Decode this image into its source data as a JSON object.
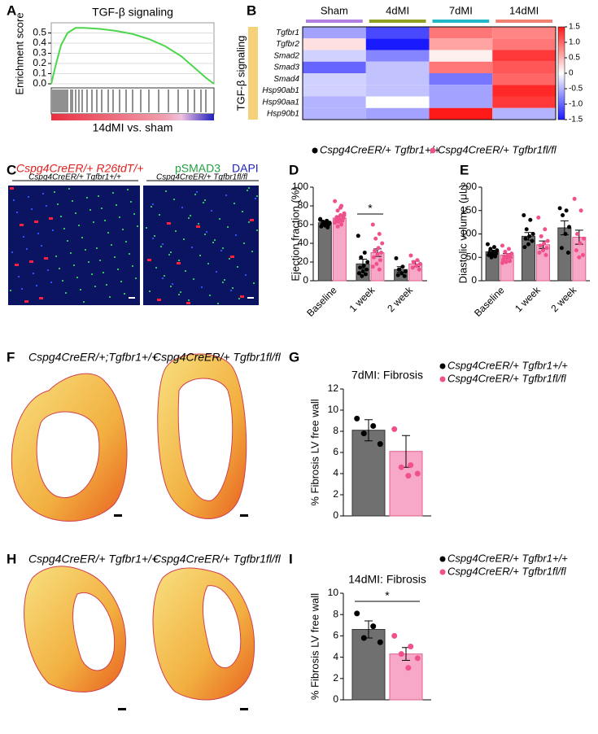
{
  "panels": {
    "letters": [
      "A",
      "B",
      "C",
      "D",
      "E",
      "F",
      "G",
      "H",
      "I"
    ],
    "C": {
      "header": [
        "Cspg4CreER/+ R26tdT/+",
        "pSMAD3",
        "DAPI"
      ],
      "labels": [
        "Cspg4CreER/+ Tgfbr1+/+",
        "Cspg4CreER/+ Tgfbr1fl/fl"
      ]
    },
    "F": {
      "labels": [
        "Cspg4CreER/+;Tgfbr1+/+",
        "Cspg4CreER/+ Tgfbr1fl/fl"
      ]
    },
    "H": {
      "labels": [
        "Cspg4CreER/+ Tgfbr1+/+",
        "Cspg4CreER/+ Tgfbr1fl/fl"
      ]
    }
  },
  "chart_data": [
    {
      "type": "line",
      "title": "TGF-β signaling",
      "ylabel": "Enrichment score",
      "xlabel": "14dMI vs. sham",
      "color": "#4cd64c",
      "x": [
        0,
        3,
        6,
        10,
        15,
        20,
        30,
        40,
        50,
        60,
        70,
        80,
        90,
        95,
        100
      ],
      "values": [
        0,
        0.2,
        0.38,
        0.5,
        0.55,
        0.55,
        0.54,
        0.52,
        0.49,
        0.44,
        0.37,
        0.27,
        0.13,
        0.06,
        0
      ],
      "hits": [
        1,
        2,
        3,
        4,
        5,
        6,
        7,
        8,
        9,
        10,
        12,
        13,
        15,
        17,
        19,
        22,
        25,
        28,
        31,
        35,
        38,
        42,
        46,
        50,
        55,
        60,
        66,
        72,
        78,
        84,
        88,
        92,
        95
      ],
      "xlim": [
        0,
        100
      ],
      "ylim": [
        0,
        0.6
      ],
      "yticks": [
        {
          "value": 0,
          "label": "0.0"
        },
        0.1,
        0.2,
        0.3,
        0.4,
        0.5
      ],
      "grid": true
    },
    {
      "type": "heatmap",
      "ylabel": "TGF-β signaling",
      "columns": [
        "Sham",
        "4dMI",
        "7dMI",
        "14dMI"
      ],
      "column_colors": [
        "#b07fe0",
        "#8fa020",
        "#22b8c8",
        "#f08070"
      ],
      "rows": [
        "Tgfbr1",
        "Tgfbr2",
        "Smad2",
        "Smad3",
        "Smad4",
        "Hsp90ab1",
        "Hsp90aa1",
        "Hsp90b1"
      ],
      "values": [
        [
          -0.6,
          -1.2,
          0.9,
          0.8
        ],
        [
          0.2,
          -1.5,
          0.6,
          0.9
        ],
        [
          -0.3,
          -0.8,
          0.1,
          1.3
        ],
        [
          -1.0,
          -0.4,
          0.9,
          1.1
        ],
        [
          -0.3,
          -0.4,
          -0.9,
          1.0
        ],
        [
          -0.3,
          -0.4,
          -0.6,
          1.4
        ],
        [
          -0.5,
          0,
          -0.6,
          1.3
        ],
        [
          -0.5,
          -0.6,
          1.5,
          -0.5
        ]
      ],
      "clim": [
        -1.5,
        1.5
      ],
      "cticks": [
        1.5,
        {
          "value": 1,
          "label": "1.0"
        },
        0.5,
        0,
        -0.5,
        {
          "value": -1,
          "label": "-1.0"
        },
        -1.5
      ]
    },
    {
      "type": "bar",
      "ylabel": "Ejection fraction (%)",
      "categories": [
        "Baseline",
        "1 week",
        "2 week"
      ],
      "annotation": "*",
      "ylim": [
        0,
        100
      ],
      "yticks": [
        0,
        20,
        40,
        60,
        80,
        100
      ],
      "series": [
        {
          "name": "Cspg4CreER/+ Tgfbr1+/+",
          "color": "#707070",
          "values": [
            62,
            18,
            12
          ],
          "errors": [
            2,
            5,
            3
          ],
          "points": [
            [
              66,
              64,
              63,
              62,
              61,
              60,
              60,
              59,
              58,
              57,
              62,
              65
            ],
            [
              48,
              30,
              25,
              20,
              16,
              14,
              12,
              10,
              8,
              7,
              5
            ],
            [
              24,
              15,
              12,
              10,
              8,
              6,
              5
            ]
          ]
        },
        {
          "name": "Cspg4CreER/+ Tgfbr1fl/fl",
          "color": "#f7a8c8",
          "values": [
            67,
            30,
            18
          ],
          "errors": [
            2,
            4,
            3
          ],
          "points": [
            [
              85,
              80,
              75,
              72,
              70,
              68,
              67,
              66,
              65,
              64,
              63,
              62,
              60,
              58,
              70,
              78
            ],
            [
              60,
              50,
              45,
              40,
              35,
              32,
              30,
              28,
              25,
              22,
              18,
              15,
              12
            ],
            [
              27,
              22,
              20,
              18,
              16,
              14,
              12
            ]
          ]
        }
      ]
    },
    {
      "type": "bar",
      "ylabel": "Diastolic volume (μL)",
      "categories": [
        "Baseline",
        "1 week",
        "2 week"
      ],
      "ylim": [
        0,
        200
      ],
      "yticks": [
        0,
        50,
        100,
        150,
        200
      ],
      "series": [
        {
          "color": "#707070",
          "values": [
            62,
            95,
            113
          ],
          "errors": [
            3,
            8,
            15
          ],
          "points": [
            [
              78,
              72,
              68,
              65,
              62,
              60,
              58,
              56,
              55,
              52,
              50
            ],
            [
              140,
              130,
              110,
              100,
              95,
              90,
              85,
              78,
              72
            ],
            [
              155,
              150,
              140,
              115,
              100,
              70,
              60
            ]
          ]
        },
        {
          "color": "#f7a8c8",
          "values": [
            55,
            77,
            93
          ],
          "errors": [
            3,
            8,
            15
          ],
          "points": [
            [
              75,
              68,
              62,
              58,
              55,
              52,
              50,
              48,
              45,
              42,
              40,
              38
            ],
            [
              135,
              110,
              95,
              85,
              80,
              75,
              70,
              65,
              60,
              55
            ],
            [
              175,
              150,
              100,
              90,
              80,
              65,
              55,
              50
            ]
          ]
        }
      ]
    },
    {
      "type": "bar",
      "title": "7dMI: Fibrosis",
      "ylabel": "% Fibrosis LV free wall",
      "categories": [
        null
      ],
      "ylim": [
        0,
        12
      ],
      "yticks": [
        0,
        2,
        4,
        6,
        8,
        10,
        12
      ],
      "series": [
        {
          "name": "Cspg4CreER/+ Tgfbr1+/+",
          "color": "#707070",
          "values": [
            8.1
          ],
          "errors": [
            1.0
          ],
          "points": [
            [
              9.2,
              8.5,
              7.8,
              6.8
            ]
          ]
        },
        {
          "name": "Cspg4CreER/+ Tgfbr1fl/fl",
          "color": "#f7a8c8",
          "values": [
            6.1
          ],
          "errors": [
            1.5
          ],
          "points": [
            [
              8.2,
              4.8,
              4.6,
              4.0,
              3.8
            ]
          ]
        }
      ]
    },
    {
      "type": "bar",
      "title": "14dMI: Fibrosis",
      "ylabel": "% Fibrosis LV free wall",
      "categories": [
        null
      ],
      "annotation": "*",
      "ylim": [
        0,
        10
      ],
      "yticks": [
        0,
        2,
        4,
        6,
        8,
        10
      ],
      "series": [
        {
          "name": "Cspg4CreER/+ Tgfbr1+/+",
          "color": "#707070",
          "values": [
            6.6
          ],
          "errors": [
            0.8
          ],
          "points": [
            [
              8.1,
              6.9,
              5.8,
              5.4
            ]
          ]
        },
        {
          "name": "Cspg4CreER/+ Tgfbr1fl/fl",
          "color": "#f7a8c8",
          "values": [
            4.3
          ],
          "errors": [
            0.6
          ],
          "points": [
            [
              6.0,
              5.0,
              4.3,
              3.9,
              3.0
            ]
          ]
        }
      ]
    }
  ]
}
